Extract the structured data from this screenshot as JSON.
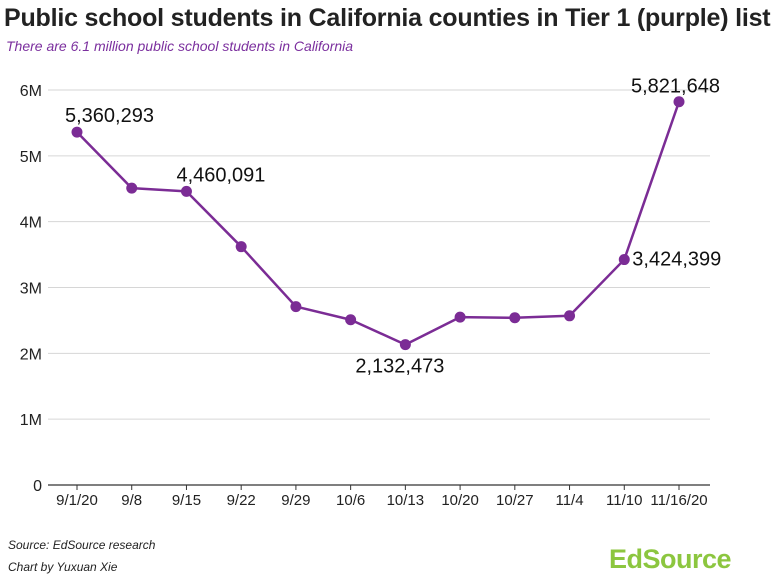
{
  "title": "Public school students in California counties in Tier 1 (purple) list",
  "subtitle": "There are 6.1 million public school students in California",
  "source": "Source: EdSource research",
  "credit": "Chart by Yuxuan Xie",
  "logo": "EdSource",
  "colors": {
    "line": "#7b2c95",
    "subtitle": "#7b2f9e",
    "logo": "#8cc63f",
    "grid": "#d6d6d6"
  },
  "chart_data": {
    "type": "line",
    "categories": [
      "9/1/20",
      "9/8",
      "9/15",
      "9/22",
      "9/29",
      "10/6",
      "10/13",
      "10/20",
      "10/27",
      "11/4",
      "11/10",
      "11/16/20"
    ],
    "series": [
      {
        "values": [
          5360293,
          4510000,
          4460091,
          3620000,
          2710000,
          2510000,
          2132473,
          2550000,
          2540000,
          2570000,
          3424399,
          5821648
        ]
      }
    ],
    "data_labels": [
      {
        "index": 0,
        "text": "5,360,293"
      },
      {
        "index": 2,
        "text": "4,460,091"
      },
      {
        "index": 6,
        "text": "2,132,473"
      },
      {
        "index": 10,
        "text": "3,424,399"
      },
      {
        "index": 11,
        "text": "5,821,648"
      }
    ],
    "yticks": [
      {
        "value": 0,
        "label": "0"
      },
      {
        "value": 1000000,
        "label": "1M"
      },
      {
        "value": 2000000,
        "label": "2M"
      },
      {
        "value": 3000000,
        "label": "3M"
      },
      {
        "value": 4000000,
        "label": "4M"
      },
      {
        "value": 5000000,
        "label": "5M"
      },
      {
        "value": 6000000,
        "label": "6M"
      }
    ],
    "ylim": [
      0,
      6000000
    ],
    "grid": true,
    "xlabel": "",
    "ylabel": ""
  }
}
